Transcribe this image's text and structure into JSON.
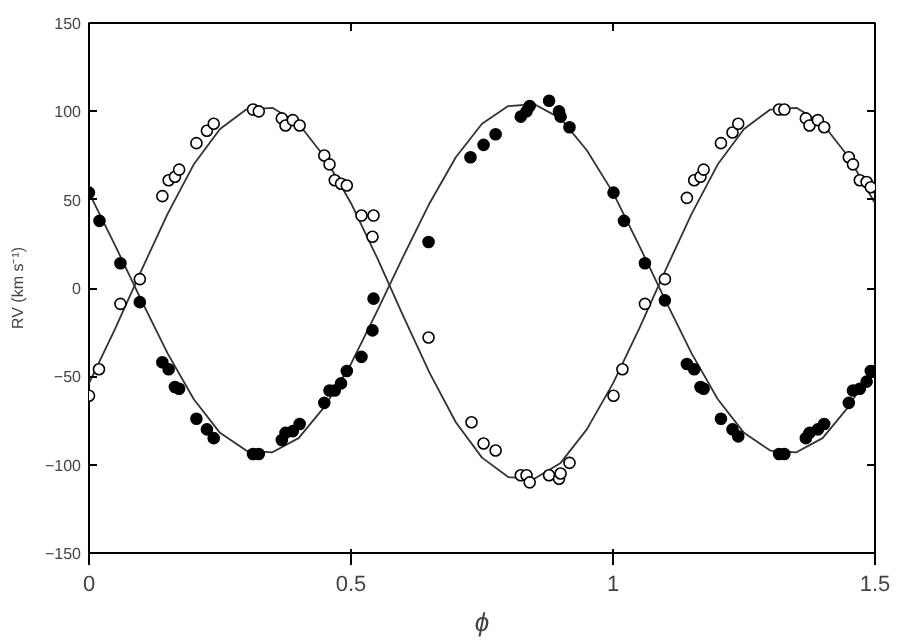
{
  "chart_data": {
    "type": "scatter",
    "xlabel": "ϕ",
    "ylabel": "RV (km s⁻¹)",
    "xlim": [
      0,
      1.5
    ],
    "ylim": [
      -150,
      150
    ],
    "xticks": [
      0,
      0.5,
      1,
      1.5
    ],
    "yticks": [
      -150,
      -100,
      -50,
      0,
      50,
      100,
      150
    ],
    "grid": false,
    "series": [
      {
        "color": "#000000",
        "marker": "circle",
        "x": [
          0,
          0.02,
          0.06,
          0.097,
          0.14,
          0.152,
          0.164,
          0.172,
          0.205,
          0.225,
          0.238,
          0.313,
          0.324,
          0.368,
          0.375,
          0.389,
          0.402,
          0.449,
          0.459,
          0.469,
          0.481,
          0.492,
          0.52,
          0.541,
          0.543,
          0.648,
          0.728,
          0.753,
          0.776,
          0.824,
          0.835,
          0.841,
          0.878,
          0.897,
          0.9,
          0.917,
          1.001,
          1.021,
          1.061,
          1.099,
          1.141,
          1.155,
          1.167,
          1.173,
          1.206,
          1.228,
          1.239,
          1.317,
          1.327,
          1.368,
          1.375,
          1.391,
          1.403,
          1.45,
          1.458,
          1.471,
          1.484,
          1.492
        ],
        "values": [
          54,
          38,
          14,
          -8,
          -42,
          -46,
          -56,
          -57,
          -74,
          -80,
          -85,
          -94,
          -94,
          -86,
          -82,
          -81,
          -77,
          -65,
          -58,
          -58,
          -54,
          -47,
          -39,
          -24,
          -6,
          26,
          74,
          81,
          87,
          97,
          100,
          103,
          106,
          100,
          97,
          91,
          54,
          38,
          14,
          -7,
          -43,
          -46,
          -56,
          -57,
          -74,
          -80,
          -84,
          -94,
          -94,
          -85,
          -82,
          -80,
          -77,
          -65,
          -58,
          -57,
          -53,
          -47
        ]
      },
      {
        "color": "#000000",
        "marker": "circle",
        "x": [
          0,
          0.019,
          0.06,
          0.097,
          0.14,
          0.152,
          0.164,
          0.172,
          0.205,
          0.225,
          0.238,
          0.313,
          0.324,
          0.368,
          0.375,
          0.389,
          0.402,
          0.449,
          0.459,
          0.469,
          0.481,
          0.492,
          0.52,
          0.543,
          0.541,
          0.648,
          0.73,
          0.753,
          0.776,
          0.824,
          0.835,
          0.841,
          0.878,
          0.897,
          0.9,
          0.917,
          1.001,
          1.018,
          1.061,
          1.099,
          1.141,
          1.155,
          1.167,
          1.173,
          1.206,
          1.228,
          1.239,
          1.317,
          1.327,
          1.368,
          1.375,
          1.391,
          1.403,
          1.45,
          1.458,
          1.471,
          1.484,
          1.492
        ],
        "values": [
          -61,
          -46,
          -9,
          5,
          52,
          61,
          63,
          67,
          82,
          89,
          93,
          101,
          100,
          96,
          92,
          95,
          92,
          75,
          70,
          61,
          59,
          58,
          41,
          41,
          29,
          -28,
          -76,
          -88,
          -92,
          -106,
          -106,
          -110,
          -106,
          -108,
          -105,
          -99,
          -61,
          -46,
          -9,
          5,
          51,
          61,
          63,
          67,
          82,
          88,
          93,
          101,
          101,
          96,
          92,
          95,
          91,
          74,
          70,
          61,
          60,
          57
        ]
      },
      {
        "type": "line",
        "color": "#333333",
        "x": [
          0,
          0.05,
          0.1,
          0.15,
          0.2,
          0.25,
          0.3,
          0.35,
          0.4,
          0.45,
          0.5,
          0.55,
          0.6,
          0.65,
          0.7,
          0.75,
          0.8,
          0.85,
          0.9,
          0.95,
          1,
          1.05,
          1.1,
          1.15,
          1.2,
          1.25,
          1.3,
          1.35,
          1.4,
          1.45,
          1.5
        ],
        "values": [
          54,
          24,
          -7,
          -37,
          -63,
          -82,
          -92,
          -93,
          -85,
          -67,
          -43,
          -13,
          18,
          48,
          74,
          93,
          103,
          104,
          96,
          78,
          54,
          24,
          -7,
          -37,
          -63,
          -82,
          -92,
          -93,
          -85,
          -67,
          -43
        ]
      },
      {
        "type": "line",
        "color": "#333333",
        "x": [
          0,
          0.05,
          0.1,
          0.15,
          0.2,
          0.25,
          0.3,
          0.35,
          0.4,
          0.45,
          0.5,
          0.55,
          0.6,
          0.65,
          0.7,
          0.75,
          0.8,
          0.85,
          0.9,
          0.95,
          1,
          1.05,
          1.1,
          1.15,
          1.2,
          1.25,
          1.3,
          1.35,
          1.4,
          1.45,
          1.5
        ],
        "values": [
          -54,
          -23,
          10,
          42,
          70,
          90,
          101,
          102,
          93,
          74,
          48,
          17,
          -16,
          -48,
          -76,
          -96,
          -107,
          -108,
          -99,
          -80,
          -54,
          -23,
          10,
          42,
          70,
          90,
          101,
          102,
          93,
          74,
          48
        ]
      }
    ]
  }
}
